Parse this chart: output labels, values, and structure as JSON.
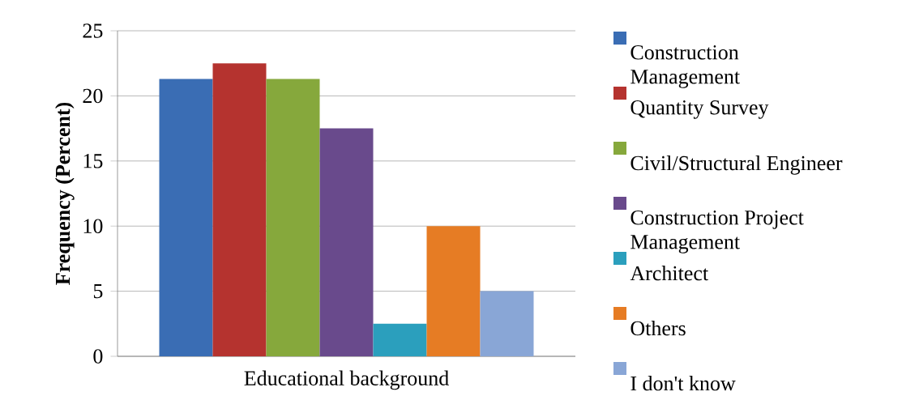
{
  "chart_data": {
    "type": "bar",
    "categories": [
      "Educational background"
    ],
    "ylabel": "Frequency (Percent)",
    "ylim": [
      0,
      25
    ],
    "yticks": [
      0,
      5,
      10,
      15,
      20,
      25
    ],
    "grid": "y",
    "legend": "right",
    "series": [
      {
        "name": "Construction Management",
        "color": "#3a6db4",
        "values": [
          21.3
        ]
      },
      {
        "name": "Quantity Survey",
        "color": "#b5332f",
        "values": [
          22.5
        ]
      },
      {
        "name": "Civil/Structural Engineer",
        "color": "#86a83c",
        "values": [
          21.3
        ]
      },
      {
        "name": "Construction Project Management",
        "color": "#694a8c",
        "values": [
          17.5
        ]
      },
      {
        "name": "Architect",
        "color": "#2b9fbd",
        "values": [
          2.5
        ]
      },
      {
        "name": "Others",
        "color": "#e67c24",
        "values": [
          10
        ]
      },
      {
        "name": "I don't know",
        "color": "#89a6d6",
        "values": [
          5
        ]
      }
    ]
  }
}
